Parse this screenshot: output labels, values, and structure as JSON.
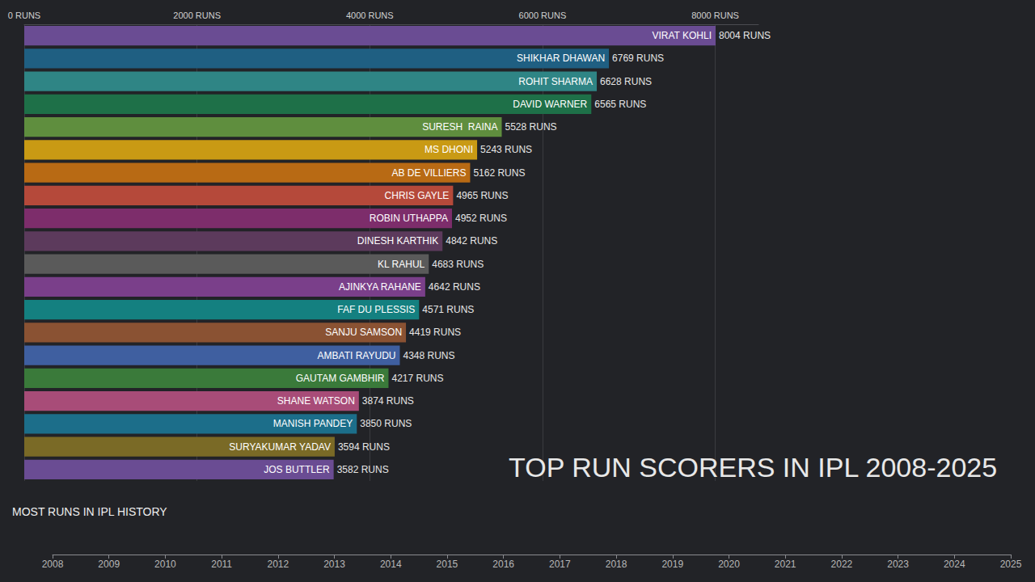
{
  "chart_data": [
    {
      "type": "bar",
      "orientation": "horizontal",
      "title": "TOP RUN SCORERS IN IPL 2008-2025",
      "categories": [
        "VIRAT KOHLI",
        "SHIKHAR DHAWAN",
        "ROHIT SHARMA",
        "DAVID WARNER",
        "SURESH  RAINA",
        "MS DHONI",
        "AB DE VILLIERS",
        "CHRIS GAYLE",
        "ROBIN UTHAPPA",
        "DINESH KARTHIK",
        "KL RAHUL",
        "AJINKYA RAHANE",
        "FAF DU PLESSIS",
        "SANJU SAMSON",
        "AMBATI RAYUDU",
        "GAUTAM GAMBHIR",
        "SHANE WATSON",
        "MANISH PANDEY",
        "SURYAKUMAR YADAV",
        "JOS BUTTLER"
      ],
      "values": [
        8004,
        6769,
        6628,
        6565,
        5528,
        5243,
        5162,
        4965,
        4952,
        4842,
        4683,
        4642,
        4571,
        4419,
        4348,
        4217,
        3874,
        3850,
        3594,
        3582
      ],
      "value_labels": [
        "8004 RUNS",
        "6769 RUNS",
        "6628 RUNS",
        "6565 RUNS",
        "5528 RUNS",
        "5243 RUNS",
        "5162 RUNS",
        "4965 RUNS",
        "4952 RUNS",
        "4842 RUNS",
        "4683 RUNS",
        "4642 RUNS",
        "4571 RUNS",
        "4419 RUNS",
        "4348 RUNS",
        "4217 RUNS",
        "3874 RUNS",
        "3850 RUNS",
        "3594 RUNS",
        "3582 RUNS"
      ],
      "colors": [
        "#6a4c93",
        "#1f5f82",
        "#2f8585",
        "#1e7048",
        "#5f8e3e",
        "#c99a14",
        "#b86a14",
        "#b5493a",
        "#7d2d6b",
        "#5c3a5c",
        "#5a5a5a",
        "#7a3f8a",
        "#148080",
        "#8a5233",
        "#3f5fa0",
        "#3a7a3a",
        "#a84c78",
        "#1c6e8a",
        "#7a6a26",
        "#6a4c93"
      ],
      "xlim": [
        0,
        8500
      ],
      "xticks": [
        {
          "value": 0,
          "label": "0 RUNS"
        },
        {
          "value": 2000,
          "label": "2000 RUNS"
        },
        {
          "value": 4000,
          "label": "4000 RUNS"
        },
        {
          "value": 6000,
          "label": "6000 RUNS"
        },
        {
          "value": 8000,
          "label": "8000 RUNS"
        }
      ],
      "grid": true,
      "data_labels": true,
      "tick_labels": "x"
    },
    {
      "type": "timeline",
      "title": "MOST RUNS IN IPL HISTORY",
      "xlim": [
        2008,
        2025
      ],
      "xticks": [
        2008,
        2009,
        2010,
        2011,
        2012,
        2013,
        2014,
        2015,
        2016,
        2017,
        2018,
        2019,
        2020,
        2021,
        2022,
        2023,
        2024,
        2025
      ],
      "tick_labels": "x"
    }
  ]
}
